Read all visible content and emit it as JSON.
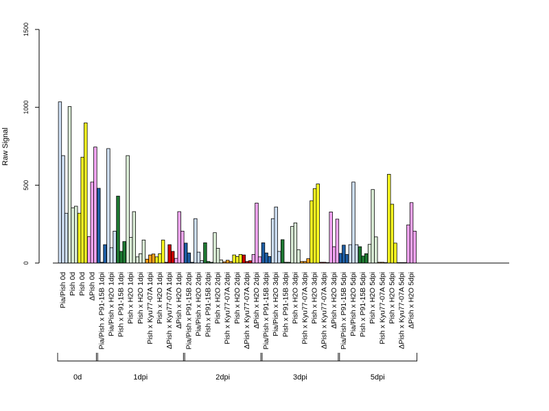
{
  "chart_data": {
    "type": "bar",
    "title": "",
    "ylabel": "Raw Signal",
    "ylim": [
      0,
      1500
    ],
    "yticks": [
      0,
      500,
      1000,
      1500
    ],
    "grid": false,
    "categories": [
      "Pia/Pish 0d",
      "Pish 0d",
      "Pish 0d",
      "ΔPish 0d",
      "Pia/Pish x P91-15B 1dpi",
      "Pia/Pish x H2O 1dpi",
      "Pish x P91-15B 1dpi",
      "Pish x H2O 1dpi",
      "Pish x H2O 1dpi",
      "Pish x Kyu77-07A 1dpi",
      "Pish x H2O 1dpi",
      "ΔPish x Kyu77-07A 1dpi",
      "ΔPish x H2O 1dpi",
      "Pia/Pish x P91-15B 2dpi",
      "Pia/Pish x H2O 2dpi",
      "Pish x P91-15B 2dpi",
      "Pish x H2O 2dpi",
      "Pish x Kyu77-07A 2dpi",
      "Pish x H2O 2dpi",
      "ΔPish x Kyu77-07A 2dpi",
      "ΔPish x H2O 2dpi",
      "Pia/Pish x P91-15B 3dpi",
      "Pia/Pish x H2O 3dpi",
      "Pish x P91-15B 3dpi",
      "Pish x H2O 3dpi",
      "Pish x Kyu77-07A 3dpi",
      "Pish x H2O 3dpi",
      "ΔPish x Kyu77-07A 3dpi",
      "ΔPish x H2O 3dpi",
      "Pia/Pish x P91-15B 5dpi",
      "Pia/Pish x H2O 5dpi",
      "Pish x P91-15B 5dpi",
      "Pish x H2O 5dpi",
      "Pish x Kyu77-07A 5dpi",
      "Pish x H2O 5dpi",
      "ΔPish x Kyu77-07A 5dpi",
      "ΔPish x H2O 5dpi"
    ],
    "category_colors": [
      "#cfe0f5",
      "#dcefd8",
      "#ffff22",
      "#f6a6f6",
      "#1f5fa6",
      "#cfe0f5",
      "#1f7a33",
      "#dcefd8",
      "#dcefd8",
      "#ffa31a",
      "#ffff22",
      "#cc0000",
      "#f6a6f6",
      "#1f5fa6",
      "#cfe0f5",
      "#1f7a33",
      "#dcefd8",
      "#ffa31a",
      "#ffff22",
      "#cc0000",
      "#f6a6f6",
      "#1f5fa6",
      "#cfe0f5",
      "#1f7a33",
      "#dcefd8",
      "#ffa31a",
      "#ffff22",
      "#cc0000",
      "#f6a6f6",
      "#1f5fa6",
      "#cfe0f5",
      "#1f7a33",
      "#dcefd8",
      "#ffa31a",
      "#ffff22",
      "#cc0000",
      "#f6a6f6"
    ],
    "values": [
      [
        1035,
        690,
        320
      ],
      [
        1005,
        355,
        365
      ],
      [
        320,
        680,
        900
      ],
      [
        170,
        520,
        745
      ],
      [
        480,
        5,
        118
      ],
      [
        735,
        98,
        205
      ],
      [
        430,
        75,
        138
      ],
      [
        690,
        165,
        330
      ],
      [
        40,
        60,
        148
      ],
      [
        25,
        52,
        58
      ],
      [
        40,
        60,
        148
      ],
      [
        5,
        118,
        75
      ],
      [
        30,
        330,
        205
      ],
      [
        128,
        65,
        5
      ],
      [
        285,
        70,
        15
      ],
      [
        130,
        10,
        5
      ],
      [
        195,
        95,
        20
      ],
      [
        8,
        18,
        10
      ],
      [
        52,
        42,
        55
      ],
      [
        52,
        10,
        15
      ],
      [
        55,
        385,
        40
      ],
      [
        130,
        65,
        42
      ],
      [
        285,
        360,
        75
      ],
      [
        150,
        5,
        5
      ],
      [
        235,
        258,
        85
      ],
      [
        10,
        10,
        28
      ],
      [
        400,
        478,
        508
      ],
      [
        5,
        5,
        3
      ],
      [
        328,
        105,
        282
      ],
      [
        62,
        115,
        55
      ],
      [
        118,
        520,
        118
      ],
      [
        105,
        45,
        60
      ],
      [
        120,
        472,
        168
      ],
      [
        5,
        5,
        3
      ],
      [
        570,
        378,
        128
      ],
      [
        3,
        3,
        3
      ],
      [
        245,
        388,
        205
      ]
    ],
    "groups": [
      {
        "label": "0d",
        "start": 0,
        "end": 3
      },
      {
        "label": "1dpi",
        "start": 4,
        "end": 12
      },
      {
        "label": "2dpi",
        "start": 13,
        "end": 20
      },
      {
        "label": "3dpi",
        "start": 21,
        "end": 28
      },
      {
        "label": "5dpi",
        "start": 29,
        "end": 36
      }
    ]
  }
}
